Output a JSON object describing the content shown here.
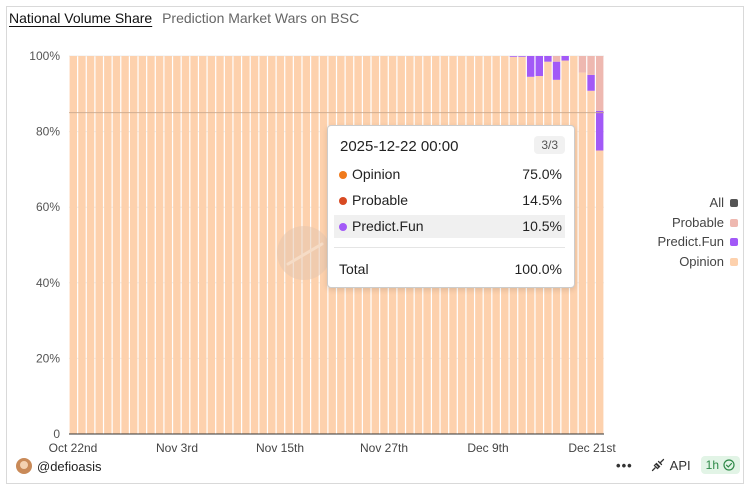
{
  "header": {
    "title": "National Volume Share",
    "subtitle": "Prediction Market Wars on BSC"
  },
  "legend": [
    {
      "label": "All",
      "color": "#555555"
    },
    {
      "label": "Probable",
      "color": "#eeb8b0"
    },
    {
      "label": "Predict.Fun",
      "color": "#a259f7"
    },
    {
      "label": "Opinion",
      "color": "#fdd1ad"
    }
  ],
  "tooltip": {
    "datetime": "2025-12-22 00:00",
    "page": "3/3",
    "rows": [
      {
        "label": "Opinion",
        "value": "75.0%",
        "color": "#f07a1c"
      },
      {
        "label": "Probable",
        "value": "14.5%",
        "color": "#d84a22"
      },
      {
        "label": "Predict.Fun",
        "value": "10.5%",
        "color": "#a259f7"
      }
    ],
    "total_label": "Total",
    "total_value": "100.0%"
  },
  "footer": {
    "user": "@defioasis",
    "api_label": "API",
    "interval": "1h",
    "menu": "•••"
  },
  "chart_data": {
    "type": "bar",
    "stacked": true,
    "ylim": [
      0,
      100
    ],
    "yticks": [
      "0",
      "20%",
      "40%",
      "60%",
      "80%",
      "100%"
    ],
    "xticks": [
      "Oct 22nd",
      "Nov 3rd",
      "Nov 15th",
      "Nov 27th",
      "Dec 9th",
      "Dec 21st"
    ],
    "bar_count": 62,
    "series": [
      {
        "name": "Opinion",
        "color": "#fdd1ad",
        "values": [
          100,
          100,
          100,
          100,
          100,
          100,
          100,
          100,
          100,
          100,
          100,
          100,
          100,
          100,
          100,
          100,
          100,
          100,
          100,
          100,
          100,
          100,
          100,
          100,
          100,
          100,
          100,
          100,
          100,
          100,
          100,
          100,
          100,
          100,
          100,
          100,
          100,
          100,
          100,
          100,
          100,
          100,
          100,
          100,
          100,
          100,
          100,
          100,
          100,
          100,
          100,
          99.8,
          99.8,
          94.5,
          94.7,
          98.5,
          93.7,
          98.8,
          100,
          95.6,
          90.8,
          75.0
        ]
      },
      {
        "name": "Predict.Fun",
        "color": "#a259f7",
        "values": [
          0,
          0,
          0,
          0,
          0,
          0,
          0,
          0,
          0,
          0,
          0,
          0,
          0,
          0,
          0,
          0,
          0,
          0,
          0,
          0,
          0,
          0,
          0,
          0,
          0,
          0,
          0,
          0,
          0,
          0,
          0,
          0,
          0,
          0,
          0,
          0,
          0,
          0,
          0,
          0,
          0,
          0,
          0,
          0,
          0,
          0,
          0,
          0,
          0,
          0,
          0,
          0.2,
          0.2,
          5.5,
          5.3,
          1.5,
          4.8,
          1.2,
          0,
          0,
          4.2,
          10.5
        ]
      },
      {
        "name": "Probable",
        "color": "#eeb8b0",
        "values": [
          0,
          0,
          0,
          0,
          0,
          0,
          0,
          0,
          0,
          0,
          0,
          0,
          0,
          0,
          0,
          0,
          0,
          0,
          0,
          0,
          0,
          0,
          0,
          0,
          0,
          0,
          0,
          0,
          0,
          0,
          0,
          0,
          0,
          0,
          0,
          0,
          0,
          0,
          0,
          0,
          0,
          0,
          0,
          0,
          0,
          0,
          0,
          0,
          0,
          0,
          0,
          0,
          0,
          0,
          0,
          0,
          1.5,
          0,
          0,
          4.4,
          5.0,
          14.5
        ]
      }
    ]
  }
}
